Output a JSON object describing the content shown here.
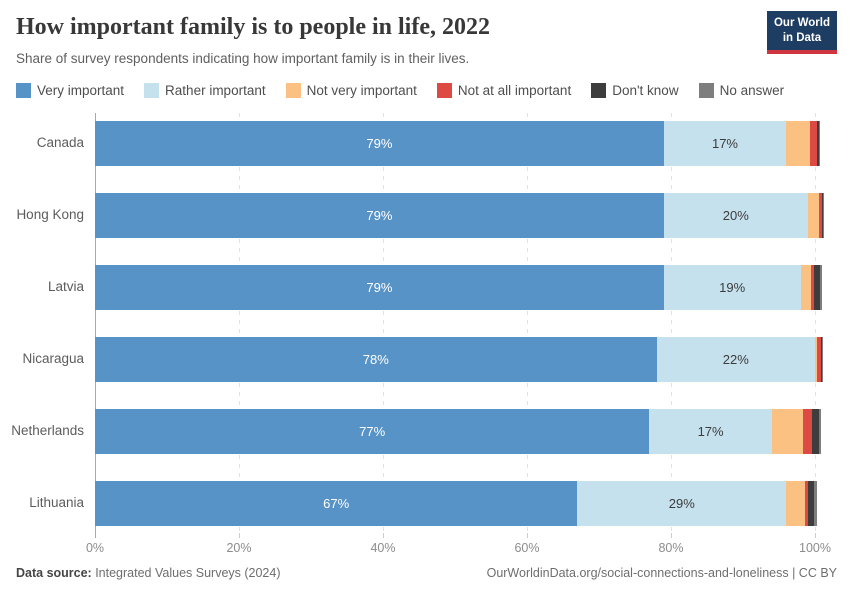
{
  "header": {
    "title": "How important family is to people in life, 2022",
    "subtitle": "Share of survey respondents indicating how important family is in their lives.",
    "logo_line1": "Our World",
    "logo_line2": "in Data"
  },
  "chart_data": {
    "type": "bar",
    "stacked": true,
    "orientation": "horizontal",
    "title": "How important family is to people in life, 2022",
    "categories": [
      "Canada",
      "Hong Kong",
      "Latvia",
      "Nicaragua",
      "Netherlands",
      "Lithuania"
    ],
    "series": [
      {
        "name": "Very important",
        "color": "#5793c6",
        "values": [
          79,
          79,
          79,
          78,
          77,
          67
        ]
      },
      {
        "name": "Rather important",
        "color": "#c6e1ee",
        "values": [
          17,
          20,
          19,
          22,
          17,
          29
        ]
      },
      {
        "name": "Not very important",
        "color": "#fac183",
        "values": [
          3.3,
          1.6,
          1.5,
          0.3,
          4.4,
          2.6
        ]
      },
      {
        "name": "Not at all important",
        "color": "#dd4a43",
        "values": [
          1.0,
          0.4,
          0.3,
          0.6,
          1.2,
          0.4
        ]
      },
      {
        "name": "Don't know",
        "color": "#3d3d3d",
        "values": [
          0.2,
          0.1,
          0.9,
          0.1,
          0.9,
          0.8
        ]
      },
      {
        "name": "No answer",
        "color": "#7e7e7e",
        "values": [
          0.2,
          0.1,
          0.3,
          0.1,
          0.4,
          0.5
        ]
      }
    ],
    "bar_label_series": [
      "Very important",
      "Rather important"
    ],
    "bar_labels": {
      "Very important": [
        "79%",
        "79%",
        "79%",
        "78%",
        "77%",
        "67%"
      ],
      "Rather important": [
        "17%",
        "20%",
        "19%",
        "22%",
        "17%",
        "29%"
      ]
    },
    "x_ticks": [
      {
        "value": 0,
        "label": "0%"
      },
      {
        "value": 20,
        "label": "20%"
      },
      {
        "value": 40,
        "label": "40%"
      },
      {
        "value": 60,
        "label": "60%"
      },
      {
        "value": 80,
        "label": "80%"
      },
      {
        "value": 100,
        "label": "100%"
      }
    ],
    "xlim": [
      0,
      100
    ],
    "grid": "dashed-vertical",
    "legend_position": "top"
  },
  "colors": {
    "label_on_dark": "#ffffff",
    "label_on_light": "#3c3c3c",
    "logo_bg": "#1d3d63",
    "logo_underline": "#cf3540"
  },
  "footer": {
    "source_label": "Data source:",
    "source_text": " Integrated Values Surveys (2024)",
    "credit": "OurWorldinData.org/social-connections-and-loneliness | CC BY"
  }
}
